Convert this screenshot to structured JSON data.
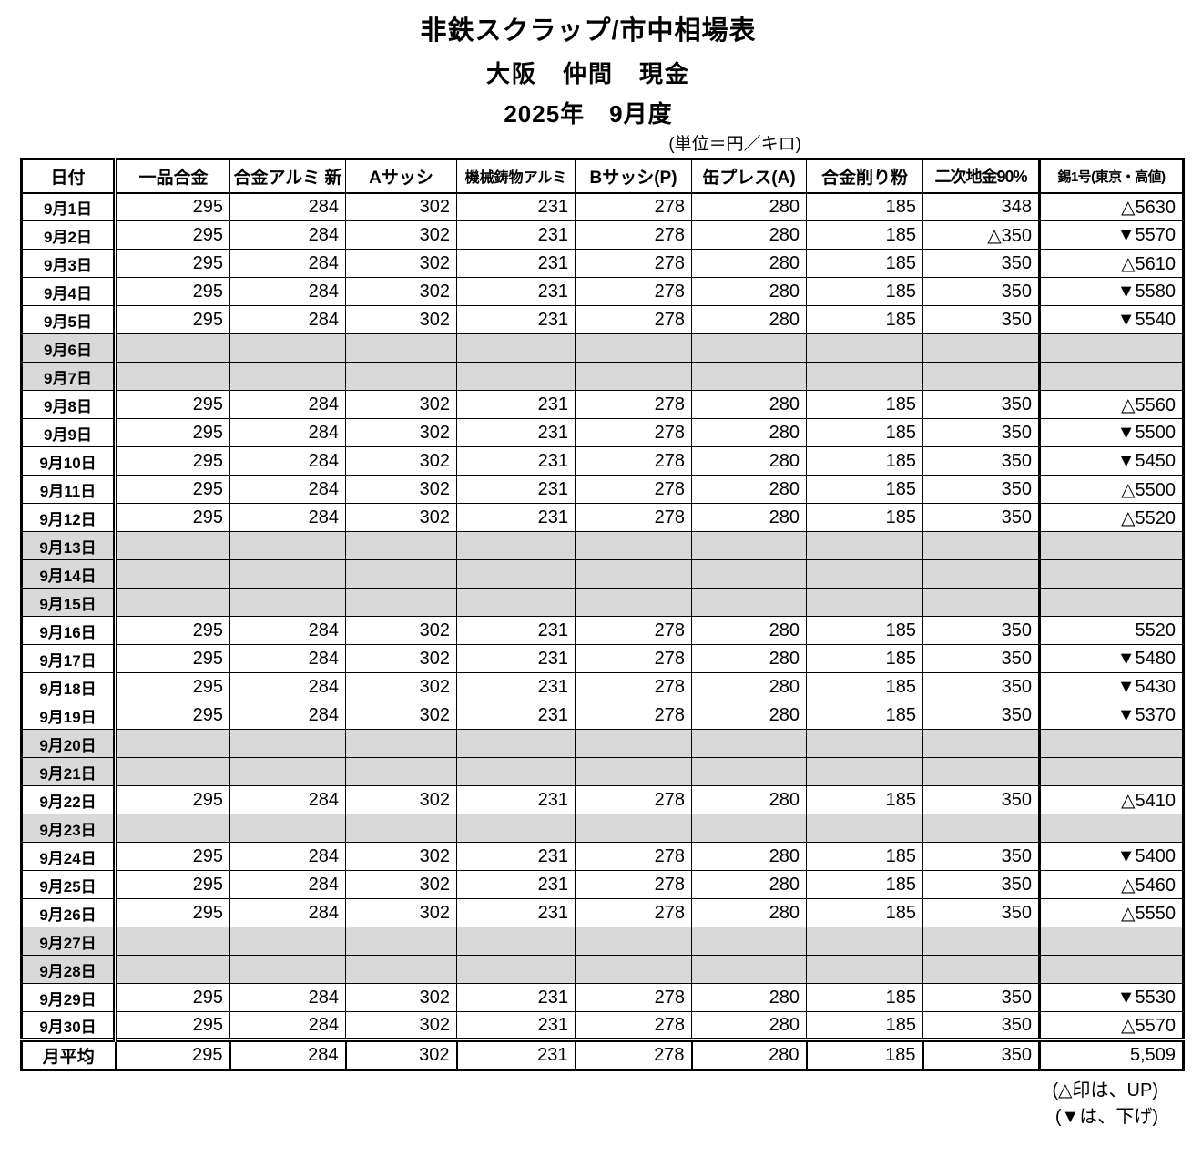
{
  "header": {
    "title": "非鉄スクラップ/市中相場表",
    "location_line": "大阪　仲間　現金",
    "period_line": "2025年　9月度",
    "unit_note": "(単位＝円／キロ)"
  },
  "table": {
    "columns": [
      "日付",
      "一品合金",
      "合金アルミ 新",
      "Aサッシ",
      "機械鋳物アルミ",
      "Bサッシ(P)",
      "缶プレス(A)",
      "合金削り粉",
      "二次地金90%",
      "錫1号(東京・高値)"
    ],
    "rows": [
      {
        "date": "9月1日",
        "holiday": false,
        "values": [
          "295",
          "284",
          "302",
          "231",
          "278",
          "280",
          "185",
          "348",
          "△5630"
        ]
      },
      {
        "date": "9月2日",
        "holiday": false,
        "values": [
          "295",
          "284",
          "302",
          "231",
          "278",
          "280",
          "185",
          "△350",
          "▼5570"
        ]
      },
      {
        "date": "9月3日",
        "holiday": false,
        "values": [
          "295",
          "284",
          "302",
          "231",
          "278",
          "280",
          "185",
          "350",
          "△5610"
        ]
      },
      {
        "date": "9月4日",
        "holiday": false,
        "values": [
          "295",
          "284",
          "302",
          "231",
          "278",
          "280",
          "185",
          "350",
          "▼5580"
        ]
      },
      {
        "date": "9月5日",
        "holiday": false,
        "values": [
          "295",
          "284",
          "302",
          "231",
          "278",
          "280",
          "185",
          "350",
          "▼5540"
        ]
      },
      {
        "date": "9月6日",
        "holiday": true,
        "values": [
          "",
          "",
          "",
          "",
          "",
          "",
          "",
          "",
          ""
        ]
      },
      {
        "date": "9月7日",
        "holiday": true,
        "values": [
          "",
          "",
          "",
          "",
          "",
          "",
          "",
          "",
          ""
        ]
      },
      {
        "date": "9月8日",
        "holiday": false,
        "values": [
          "295",
          "284",
          "302",
          "231",
          "278",
          "280",
          "185",
          "350",
          "△5560"
        ]
      },
      {
        "date": "9月9日",
        "holiday": false,
        "values": [
          "295",
          "284",
          "302",
          "231",
          "278",
          "280",
          "185",
          "350",
          "▼5500"
        ]
      },
      {
        "date": "9月10日",
        "holiday": false,
        "values": [
          "295",
          "284",
          "302",
          "231",
          "278",
          "280",
          "185",
          "350",
          "▼5450"
        ]
      },
      {
        "date": "9月11日",
        "holiday": false,
        "values": [
          "295",
          "284",
          "302",
          "231",
          "278",
          "280",
          "185",
          "350",
          "△5500"
        ]
      },
      {
        "date": "9月12日",
        "holiday": false,
        "values": [
          "295",
          "284",
          "302",
          "231",
          "278",
          "280",
          "185",
          "350",
          "△5520"
        ]
      },
      {
        "date": "9月13日",
        "holiday": true,
        "values": [
          "",
          "",
          "",
          "",
          "",
          "",
          "",
          "",
          ""
        ]
      },
      {
        "date": "9月14日",
        "holiday": true,
        "values": [
          "",
          "",
          "",
          "",
          "",
          "",
          "",
          "",
          ""
        ]
      },
      {
        "date": "9月15日",
        "holiday": true,
        "values": [
          "",
          "",
          "",
          "",
          "",
          "",
          "",
          "",
          ""
        ]
      },
      {
        "date": "9月16日",
        "holiday": false,
        "values": [
          "295",
          "284",
          "302",
          "231",
          "278",
          "280",
          "185",
          "350",
          "5520"
        ]
      },
      {
        "date": "9月17日",
        "holiday": false,
        "values": [
          "295",
          "284",
          "302",
          "231",
          "278",
          "280",
          "185",
          "350",
          "▼5480"
        ]
      },
      {
        "date": "9月18日",
        "holiday": false,
        "values": [
          "295",
          "284",
          "302",
          "231",
          "278",
          "280",
          "185",
          "350",
          "▼5430"
        ]
      },
      {
        "date": "9月19日",
        "holiday": false,
        "values": [
          "295",
          "284",
          "302",
          "231",
          "278",
          "280",
          "185",
          "350",
          "▼5370"
        ]
      },
      {
        "date": "9月20日",
        "holiday": true,
        "values": [
          "",
          "",
          "",
          "",
          "",
          "",
          "",
          "",
          ""
        ]
      },
      {
        "date": "9月21日",
        "holiday": true,
        "values": [
          "",
          "",
          "",
          "",
          "",
          "",
          "",
          "",
          ""
        ]
      },
      {
        "date": "9月22日",
        "holiday": false,
        "values": [
          "295",
          "284",
          "302",
          "231",
          "278",
          "280",
          "185",
          "350",
          "△5410"
        ]
      },
      {
        "date": "9月23日",
        "holiday": true,
        "values": [
          "",
          "",
          "",
          "",
          "",
          "",
          "",
          "",
          ""
        ]
      },
      {
        "date": "9月24日",
        "holiday": false,
        "values": [
          "295",
          "284",
          "302",
          "231",
          "278",
          "280",
          "185",
          "350",
          "▼5400"
        ]
      },
      {
        "date": "9月25日",
        "holiday": false,
        "values": [
          "295",
          "284",
          "302",
          "231",
          "278",
          "280",
          "185",
          "350",
          "△5460"
        ]
      },
      {
        "date": "9月26日",
        "holiday": false,
        "values": [
          "295",
          "284",
          "302",
          "231",
          "278",
          "280",
          "185",
          "350",
          "△5550"
        ]
      },
      {
        "date": "9月27日",
        "holiday": true,
        "values": [
          "",
          "",
          "",
          "",
          "",
          "",
          "",
          "",
          ""
        ]
      },
      {
        "date": "9月28日",
        "holiday": true,
        "values": [
          "",
          "",
          "",
          "",
          "",
          "",
          "",
          "",
          ""
        ]
      },
      {
        "date": "9月29日",
        "holiday": false,
        "values": [
          "295",
          "284",
          "302",
          "231",
          "278",
          "280",
          "185",
          "350",
          "▼5530"
        ]
      },
      {
        "date": "9月30日",
        "holiday": false,
        "values": [
          "295",
          "284",
          "302",
          "231",
          "278",
          "280",
          "185",
          "350",
          "△5570"
        ]
      }
    ],
    "average": {
      "label": "月平均",
      "values": [
        "295",
        "284",
        "302",
        "231",
        "278",
        "280",
        "185",
        "350",
        "5,509"
      ]
    }
  },
  "footnotes": [
    "(△印は、UP)",
    "(▼は、下げ)"
  ],
  "colors": {
    "holiday_fill": "#d9d9d9",
    "border": "#000000",
    "text": "#000000",
    "background": "#ffffff"
  }
}
